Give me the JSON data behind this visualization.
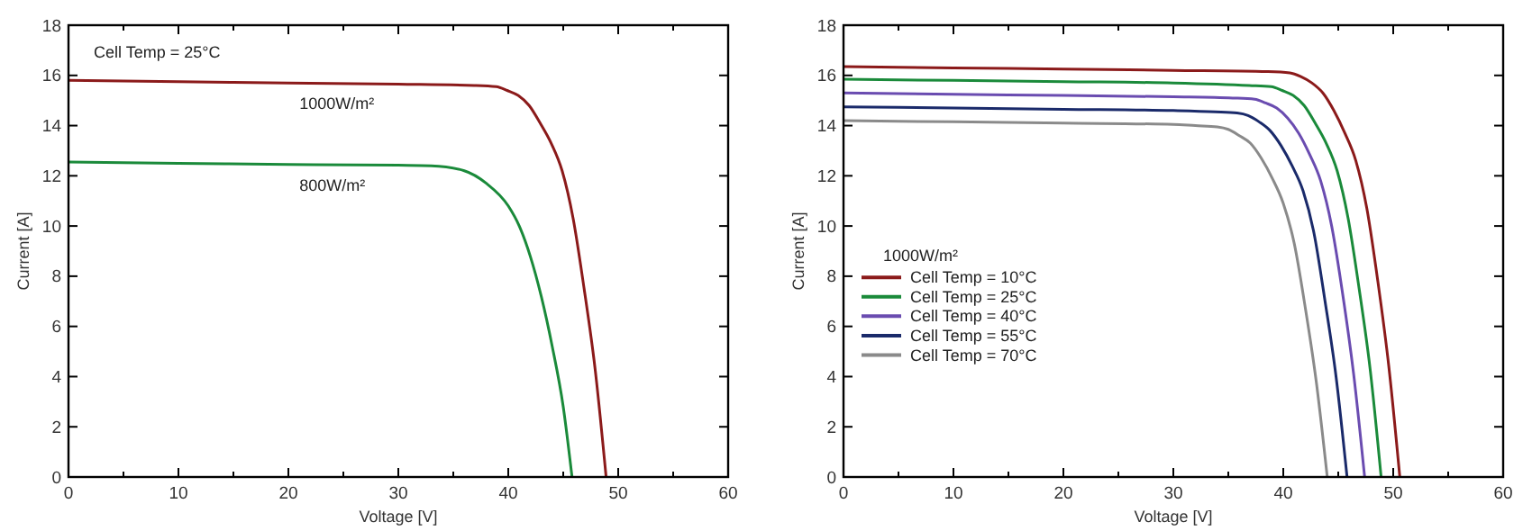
{
  "chart_data": [
    {
      "type": "line",
      "xlabel": "Voltage [V]",
      "ylabel": "Current [A]",
      "xlim": [
        0,
        60
      ],
      "ylim": [
        0,
        18
      ],
      "xticks": [
        0,
        {
          "value": 5,
          "label": null
        },
        10,
        {
          "value": 15,
          "label": null
        },
        20,
        {
          "value": 25,
          "label": null
        },
        30,
        {
          "value": 35,
          "label": null
        },
        40,
        {
          "value": 45,
          "label": null
        },
        50,
        {
          "value": 55,
          "label": null
        },
        60
      ],
      "yticks": [
        0,
        2,
        4,
        6,
        8,
        10,
        12,
        14,
        16,
        18
      ],
      "marker": "none",
      "line_style": "solid",
      "series": [
        {
          "color": "#8b1a1a",
          "x": [
            0,
            10,
            20,
            30,
            36.9,
            38.9,
            39.9,
            40.9,
            41.9,
            42.9,
            43.9,
            44.9,
            45.9,
            46.9,
            47.9,
            48.9
          ],
          "values": [
            15.8,
            15.75,
            15.7,
            15.65,
            15.6,
            15.55,
            15.4,
            15.2,
            14.8,
            14.1,
            13.3,
            12.2,
            10.3,
            7.5,
            4.3,
            0
          ]
        },
        {
          "color": "#1a8a3a",
          "x": [
            0,
            10,
            20,
            30,
            33,
            36,
            38,
            40,
            41,
            42,
            43,
            44,
            45,
            45.8
          ],
          "values": [
            12.55,
            12.5,
            12.45,
            12.42,
            12.4,
            12.2,
            11.7,
            10.8,
            10.0,
            8.8,
            7.2,
            5.2,
            2.8,
            0
          ]
        }
      ],
      "annotations": [
        "Cell Temp = 25°C",
        "1000W/m²",
        "800W/m²"
      ]
    },
    {
      "type": "line",
      "xlabel": "Voltage [V]",
      "ylabel": "Current [A]",
      "xlim": [
        0,
        60
      ],
      "ylim": [
        0,
        18
      ],
      "xticks": [
        0,
        {
          "value": 5,
          "label": null
        },
        10,
        {
          "value": 15,
          "label": null
        },
        20,
        {
          "value": 25,
          "label": null
        },
        30,
        {
          "value": 35,
          "label": null
        },
        40,
        {
          "value": 45,
          "label": null
        },
        50,
        {
          "value": 55,
          "label": null
        },
        60
      ],
      "yticks": [
        0,
        2,
        4,
        6,
        8,
        10,
        12,
        14,
        16,
        18
      ],
      "marker": "none",
      "line_style": "solid",
      "legend": "bottom left",
      "legend_title": "1000W/m²",
      "series": [
        {
          "name": "Cell Temp = 10°C",
          "color": "#8b1a1a",
          "x": [
            0,
            10,
            20,
            30,
            38.6,
            40.6,
            41.6,
            42.6,
            43.6,
            44.6,
            45.6,
            46.6,
            47.6,
            48.6,
            49.6,
            50.6
          ],
          "values": [
            16.35,
            16.3,
            16.25,
            16.2,
            16.15,
            16.1,
            15.95,
            15.7,
            15.3,
            14.6,
            13.7,
            12.6,
            10.7,
            7.8,
            4.4,
            0
          ]
        },
        {
          "name": "Cell Temp = 25°C",
          "color": "#1a8a3a",
          "x": [
            0,
            10,
            20,
            30,
            36.9,
            38.9,
            39.9,
            40.9,
            41.9,
            42.9,
            43.9,
            44.9,
            45.9,
            46.9,
            47.9,
            48.9
          ],
          "values": [
            15.85,
            15.8,
            15.75,
            15.7,
            15.6,
            15.55,
            15.4,
            15.2,
            14.8,
            14.1,
            13.3,
            12.2,
            10.3,
            7.5,
            4.3,
            0
          ]
        },
        {
          "name": "Cell Temp = 40°C",
          "color": "#6a4cb0",
          "x": [
            0,
            10,
            20,
            30,
            35.4,
            37.4,
            38.4,
            39.4,
            40.4,
            41.4,
            42.4,
            43.4,
            44.4,
            45.4,
            46.4,
            47.4
          ],
          "values": [
            15.3,
            15.25,
            15.2,
            15.15,
            15.1,
            15.05,
            14.9,
            14.7,
            14.3,
            13.7,
            12.85,
            11.8,
            10.0,
            7.3,
            4.1,
            0
          ]
        },
        {
          "name": "Cell Temp = 55°C",
          "color": "#1a2a6a",
          "x": [
            0,
            10,
            20,
            30,
            33.8,
            35.8,
            36.8,
            37.8,
            38.8,
            39.8,
            40.8,
            41.8,
            42.8,
            43.8,
            44.8,
            45.8
          ],
          "values": [
            14.75,
            14.7,
            14.65,
            14.6,
            14.55,
            14.5,
            14.4,
            14.15,
            13.8,
            13.2,
            12.4,
            11.4,
            9.7,
            7.0,
            4.0,
            0
          ]
        },
        {
          "name": "Cell Temp = 70°C",
          "color": "#8a8a8a",
          "x": [
            0,
            10,
            20,
            30,
            32,
            34,
            35,
            36,
            37,
            38,
            39,
            40,
            41,
            42,
            43,
            44
          ],
          "values": [
            14.2,
            14.15,
            14.1,
            14.05,
            14.0,
            13.95,
            13.85,
            13.6,
            13.3,
            12.7,
            11.9,
            10.9,
            9.3,
            6.75,
            3.8,
            0
          ]
        }
      ]
    }
  ]
}
